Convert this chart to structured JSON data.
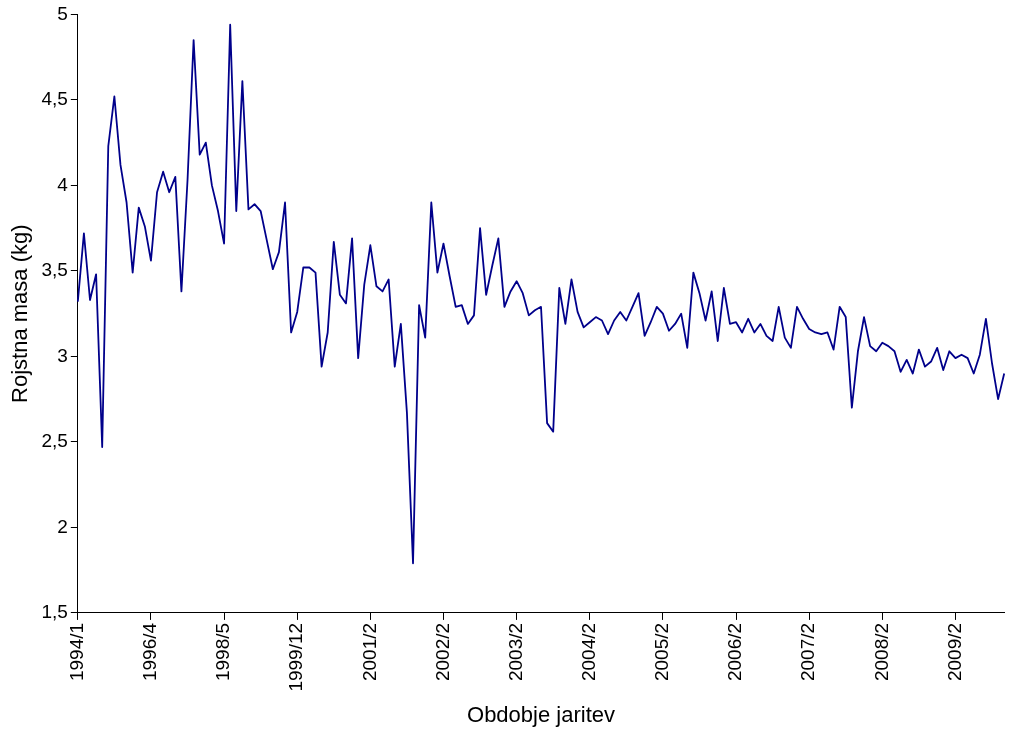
{
  "chart_data": {
    "type": "line",
    "xlabel": "Obdobje jaritev",
    "ylabel": "Rojstna masa (kg)",
    "categories": [
      "1994/1",
      null,
      null,
      null,
      null,
      null,
      null,
      null,
      null,
      null,
      null,
      null,
      "1996/4",
      null,
      null,
      null,
      null,
      null,
      null,
      null,
      null,
      null,
      null,
      null,
      "1998/5",
      null,
      null,
      null,
      null,
      null,
      null,
      null,
      null,
      null,
      null,
      null,
      "1999/12",
      null,
      null,
      null,
      null,
      null,
      null,
      null,
      null,
      null,
      null,
      null,
      "2001/2",
      null,
      null,
      null,
      null,
      null,
      null,
      null,
      null,
      null,
      null,
      null,
      "2002/2",
      null,
      null,
      null,
      null,
      null,
      null,
      null,
      null,
      null,
      null,
      null,
      "2003/2",
      null,
      null,
      null,
      null,
      null,
      null,
      null,
      null,
      null,
      null,
      null,
      "2004/2",
      null,
      null,
      null,
      null,
      null,
      null,
      null,
      null,
      null,
      null,
      null,
      "2005/2",
      null,
      null,
      null,
      null,
      null,
      null,
      null,
      null,
      null,
      null,
      null,
      "2006/2",
      null,
      null,
      null,
      null,
      null,
      null,
      null,
      null,
      null,
      null,
      null,
      "2007/2",
      null,
      null,
      null,
      null,
      null,
      null,
      null,
      null,
      null,
      null,
      null,
      "2008/2",
      null,
      null,
      null,
      null,
      null,
      null,
      null,
      null,
      null,
      null,
      null,
      "2009/2",
      null,
      null,
      null,
      null,
      null,
      null,
      null,
      null
    ],
    "series": [
      {
        "color": "#00008b",
        "values": [
          3.32,
          3.72,
          3.33,
          3.48,
          2.47,
          4.23,
          4.52,
          4.12,
          3.9,
          3.49,
          3.87,
          3.76,
          3.56,
          3.96,
          4.08,
          3.96,
          4.05,
          3.38,
          4.03,
          4.85,
          4.18,
          4.25,
          4.0,
          3.85,
          3.66,
          4.94,
          3.85,
          4.61,
          3.86,
          3.89,
          3.85,
          3.68,
          3.51,
          3.61,
          3.9,
          3.14,
          3.26,
          3.52,
          3.52,
          3.49,
          2.94,
          3.14,
          3.67,
          3.36,
          3.31,
          3.69,
          2.99,
          3.42,
          3.65,
          3.41,
          3.38,
          3.45,
          2.94,
          3.19,
          2.67,
          1.79,
          3.3,
          3.11,
          3.9,
          3.49,
          3.66,
          3.47,
          3.29,
          3.3,
          3.19,
          3.24,
          3.75,
          3.36,
          3.53,
          3.69,
          3.29,
          3.38,
          3.44,
          3.37,
          3.24,
          3.27,
          3.29,
          2.61,
          2.56,
          3.4,
          3.19,
          3.45,
          3.26,
          3.17,
          3.2,
          3.23,
          3.21,
          3.13,
          3.21,
          3.26,
          3.21,
          3.29,
          3.37,
          3.12,
          3.2,
          3.29,
          3.25,
          3.15,
          3.19,
          3.25,
          3.05,
          3.49,
          3.37,
          3.21,
          3.38,
          3.09,
          3.4,
          3.19,
          3.2,
          3.14,
          3.22,
          3.14,
          3.19,
          3.12,
          3.09,
          3.29,
          3.11,
          3.05,
          3.29,
          3.22,
          3.16,
          3.14,
          3.13,
          3.14,
          3.04,
          3.29,
          3.23,
          2.7,
          3.03,
          3.23,
          3.06,
          3.03,
          3.08,
          3.06,
          3.03,
          2.91,
          2.98,
          2.9,
          3.04,
          2.94,
          2.97,
          3.05,
          2.92,
          3.03,
          2.99,
          3.01,
          2.99,
          2.9,
          3.01,
          3.22,
          2.96,
          2.75,
          2.9
        ]
      }
    ],
    "ylim": [
      1.5,
      5
    ],
    "yticks": [
      {
        "value": 1.5,
        "label": "1,5"
      },
      2,
      {
        "value": 2.5,
        "label": "2,5"
      },
      3,
      {
        "value": 3.5,
        "label": "3,5"
      },
      4,
      {
        "value": 4.5,
        "label": "4,5"
      },
      5
    ],
    "grid": false,
    "legend": false,
    "marker": "none",
    "line_style": "solid"
  }
}
